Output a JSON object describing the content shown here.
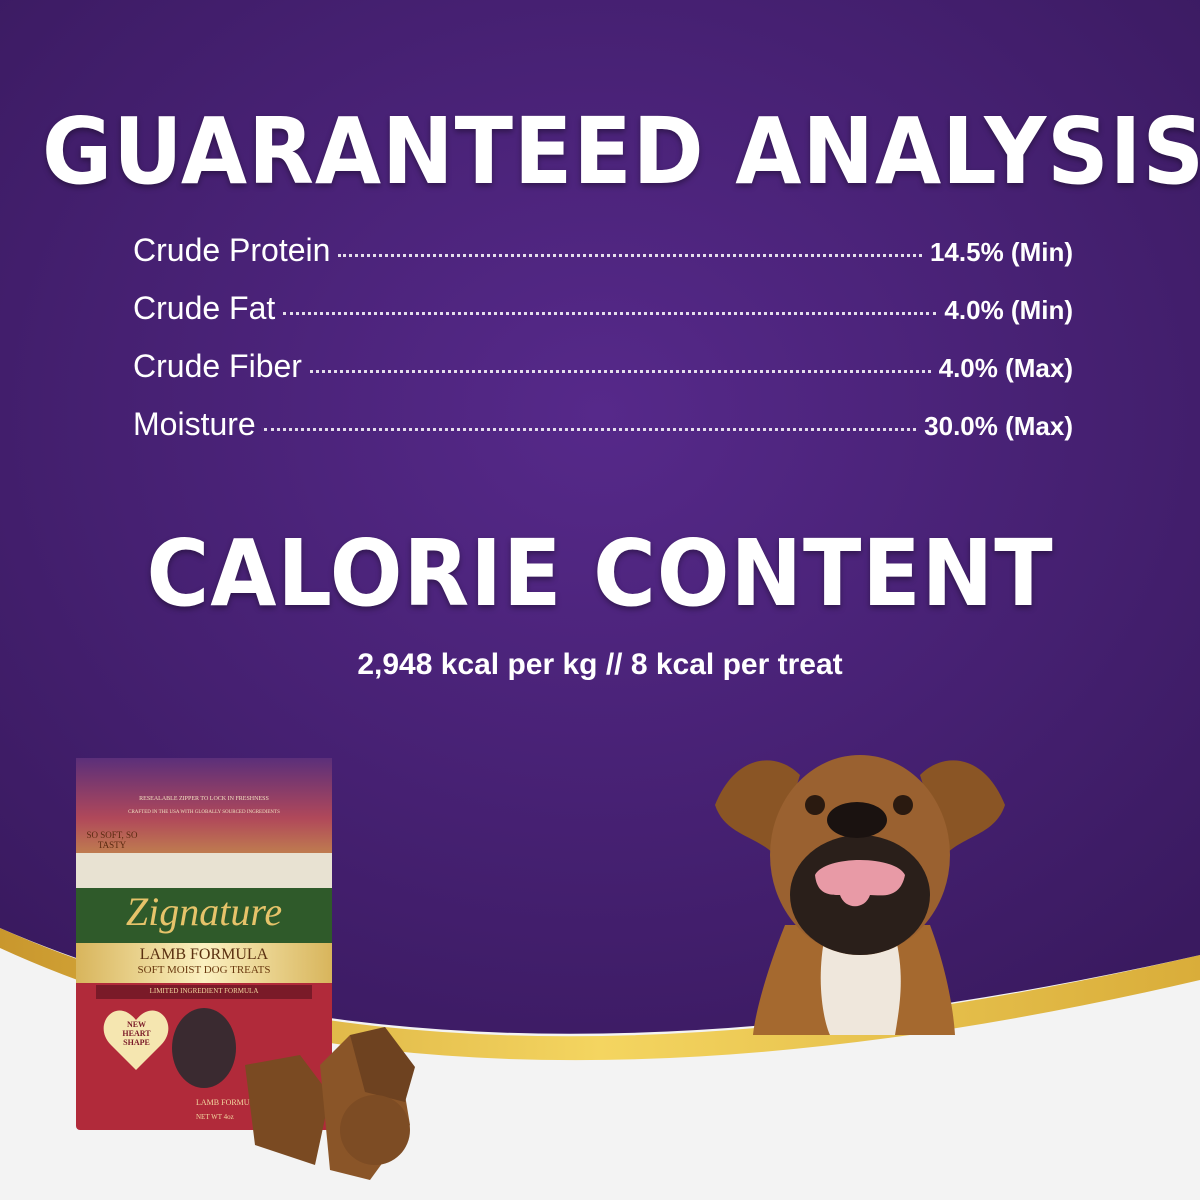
{
  "colors": {
    "background_purple": "#452171",
    "gold_band": "#e8c24a",
    "floor": "#f3f3f3",
    "text": "#ffffff"
  },
  "guaranteed_analysis": {
    "title": "GUARANTEED ANALYSIS",
    "rows": [
      {
        "label": "Crude Protein",
        "value": "14.5%  (Min)"
      },
      {
        "label": "Crude Fat",
        "value": "4.0%  (Min)"
      },
      {
        "label": "Crude Fiber",
        "value": "4.0%  (Max)"
      },
      {
        "label": "Moisture",
        "value": "30.0%  (Max)"
      }
    ]
  },
  "calorie_content": {
    "title": "CALORIE CONTENT",
    "text": "2,948 kcal per kg //  8 kcal per treat"
  },
  "package": {
    "line1": "RESEALABLE ZIPPER TO LOCK IN FRESHNESS",
    "line2": "CRAFTED IN THE USA WITH GLOBALLY SOURCED INGREDIENTS",
    "ribbon": "SO SOFT, SO TASTY",
    "brand": "Zignature",
    "product": "LAMB FORMULA",
    "subtitle": "SOFT MOIST DOG TREATS",
    "band": "LIMITED INGREDIENT FORMULA",
    "heart": "NEW HEART SHAPE",
    "footer": "LAMB FORMULA",
    "net": "NET WT 4oz"
  },
  "images": {
    "dog": "boxer-dog-licking-lips",
    "treats": "heart-shaped-treats"
  }
}
